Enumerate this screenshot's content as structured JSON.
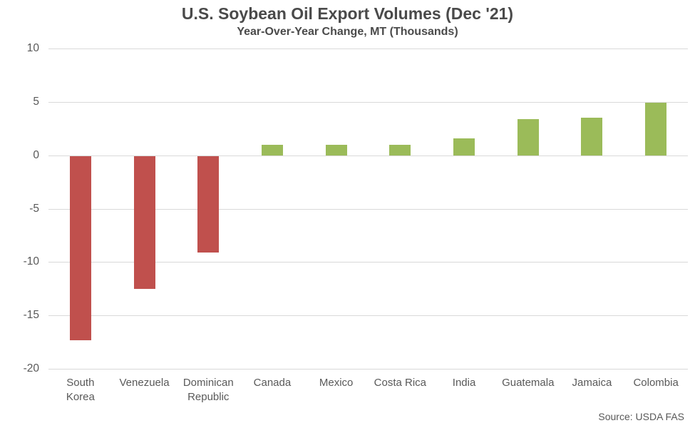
{
  "header": {
    "title": "U.S. Soybean Oil Export Volumes (Dec '21)",
    "subtitle": "Year-Over-Year Change, MT (Thousands)"
  },
  "footer": {
    "source": "Source: USDA FAS"
  },
  "colors": {
    "positive_bar": "#9bbb59",
    "negative_bar": "#c0504d",
    "gridline": "#d9d9d9",
    "axis_text": "#595959",
    "title_text": "#4a4a4a",
    "background": "#ffffff"
  },
  "chart_data": {
    "type": "bar",
    "title": "U.S. Soybean Oil Export Volumes (Dec '21)",
    "subtitle": "Year-Over-Year Change, MT (Thousands)",
    "categories": [
      "South Korea",
      "Venezuela",
      "Dominican Republic",
      "Canada",
      "Mexico",
      "Costa Rica",
      "India",
      "Guatemala",
      "Jamaica",
      "Colombia"
    ],
    "values": [
      -17.3,
      -12.5,
      -9.1,
      1.0,
      1.0,
      1.0,
      1.6,
      3.4,
      3.5,
      4.9
    ],
    "xlabel": "",
    "ylabel": "",
    "ylim": [
      -20,
      10
    ],
    "yticks": [
      10,
      5,
      0,
      -5,
      -10,
      -15,
      -20
    ],
    "grid": true,
    "legend": false,
    "annotation": "Source: USDA FAS"
  }
}
